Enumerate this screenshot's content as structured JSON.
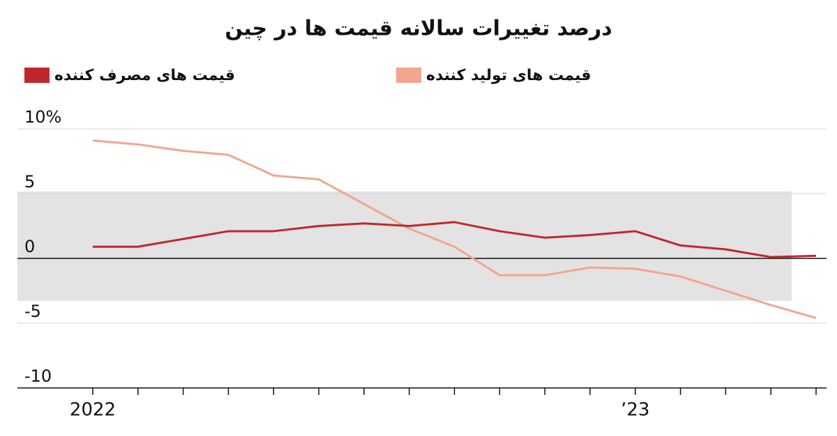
{
  "chart_data": {
    "type": "line",
    "title": "درصد تغییرات سالانه قیمت ها در چین",
    "categories": [
      "2022",
      null,
      null,
      null,
      null,
      null,
      null,
      null,
      null,
      null,
      null,
      null,
      "’23",
      null,
      null,
      null,
      null
    ],
    "series": [
      {
        "name": "قیمت های مصرف کننده",
        "color": "#c0272d",
        "values": [
          0.9,
          0.9,
          1.5,
          2.1,
          2.1,
          2.5,
          2.7,
          2.5,
          2.8,
          2.1,
          1.6,
          1.8,
          2.1,
          1.0,
          0.7,
          0.1,
          0.2
        ]
      },
      {
        "name": "قیمت های تولید کننده",
        "color": "#f3a58f",
        "values": [
          9.1,
          8.8,
          8.3,
          8.0,
          6.4,
          6.1,
          4.2,
          2.3,
          0.9,
          -1.3,
          -1.3,
          -0.7,
          -0.8,
          -1.4,
          -2.5,
          -3.6,
          -4.6
        ]
      }
    ],
    "ylim": [
      -10,
      10
    ],
    "yticks": [
      {
        "value": 10,
        "label": "10%"
      },
      5,
      0,
      -5,
      -10
    ],
    "grid": true
  }
}
